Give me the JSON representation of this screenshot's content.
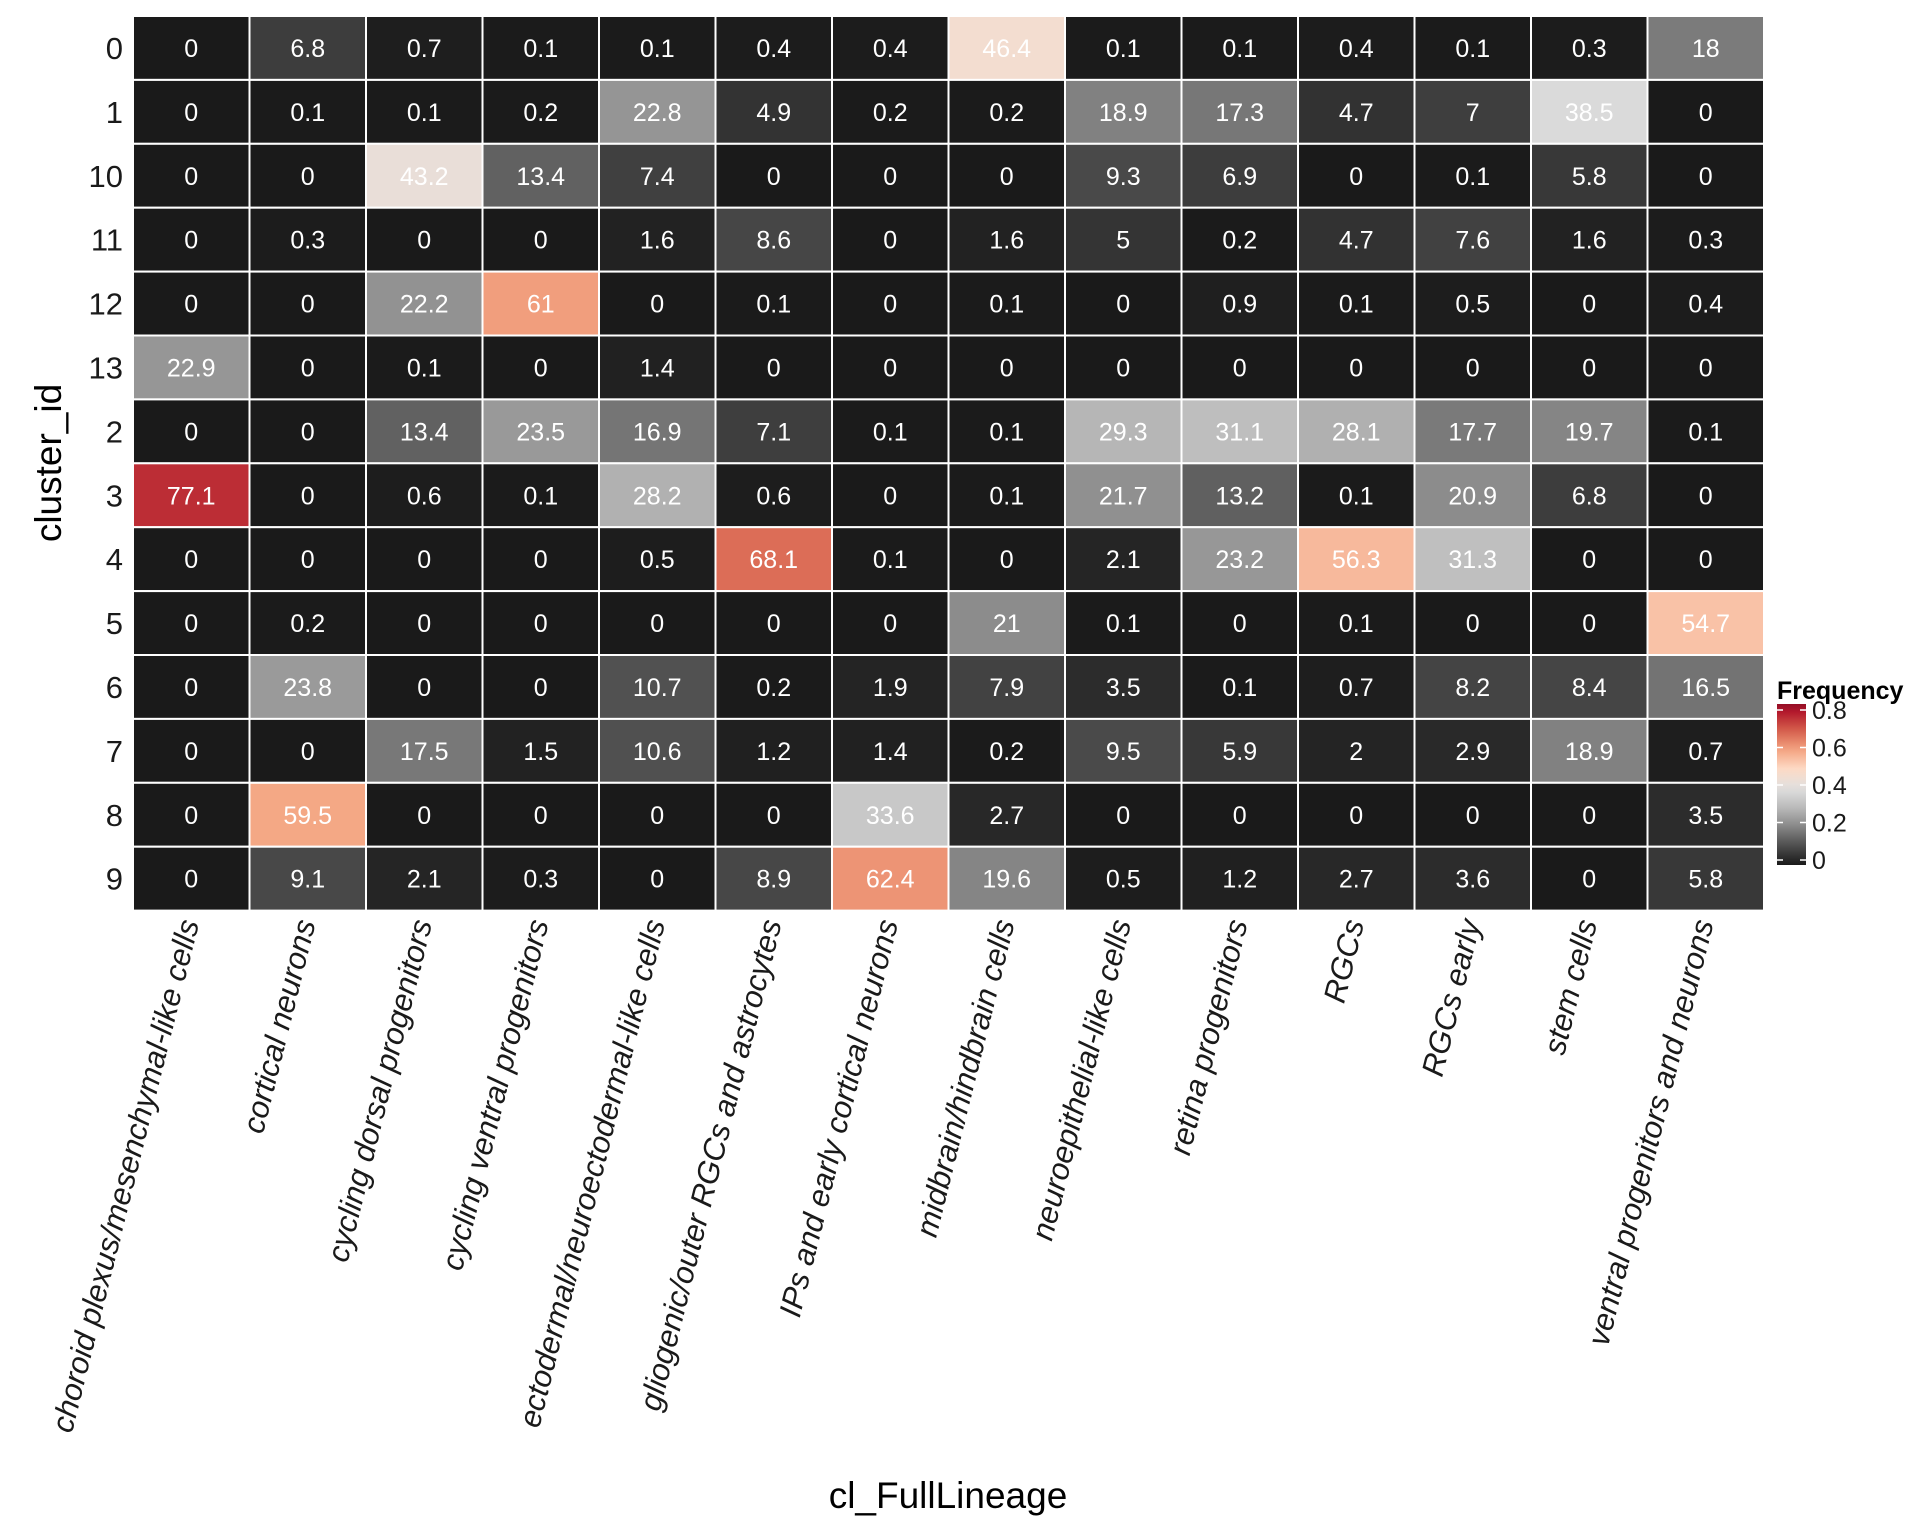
{
  "chart_data": {
    "type": "heatmap",
    "xlabel": "cl_FullLineage",
    "ylabel": "cluster_id",
    "columns": [
      "choroid plexus/mesenchymal-like cells",
      "cortical neurons",
      "cycling dorsal progenitors",
      "cycling ventral progenitors",
      "ectodermal/neuroectodermal-like cells",
      "gliogenic/outer RGCs and astrocytes",
      "IPs and early cortical neurons",
      "midbrain/hindbrain cells",
      "neuroepithelial-like cells",
      "retina progenitors",
      "RGCs",
      "RGCs early",
      "stem cells",
      "ventral progenitors and neurons"
    ],
    "rows": [
      "0",
      "1",
      "10",
      "11",
      "12",
      "13",
      "2",
      "3",
      "4",
      "5",
      "6",
      "7",
      "8",
      "9"
    ],
    "values": [
      [
        0,
        6.8,
        0.7,
        0.1,
        0.1,
        0.4,
        0.4,
        46.4,
        0.1,
        0.1,
        0.4,
        0.1,
        0.3,
        18
      ],
      [
        0,
        0.1,
        0.1,
        0.2,
        22.8,
        4.9,
        0.2,
        0.2,
        18.9,
        17.3,
        4.7,
        7,
        38.5,
        0
      ],
      [
        0,
        0,
        43.2,
        13.4,
        7.4,
        0,
        0,
        0,
        9.3,
        6.9,
        0,
        0.1,
        5.8,
        0
      ],
      [
        0,
        0.3,
        0,
        0,
        1.6,
        8.6,
        0,
        1.6,
        5,
        0.2,
        4.7,
        7.6,
        1.6,
        0.3
      ],
      [
        0,
        0,
        22.2,
        61,
        0,
        0.1,
        0,
        0.1,
        0,
        0.9,
        0.1,
        0.5,
        0,
        0.4
      ],
      [
        22.9,
        0,
        0.1,
        0,
        1.4,
        0,
        0,
        0,
        0,
        0,
        0,
        0,
        0,
        0
      ],
      [
        0,
        0,
        13.4,
        23.5,
        16.9,
        7.1,
        0.1,
        0.1,
        29.3,
        31.1,
        28.1,
        17.7,
        19.7,
        0.1
      ],
      [
        77.1,
        0,
        0.6,
        0.1,
        28.2,
        0.6,
        0,
        0.1,
        21.7,
        13.2,
        0.1,
        20.9,
        6.8,
        0
      ],
      [
        0,
        0,
        0,
        0,
        0.5,
        68.1,
        0.1,
        0,
        2.1,
        23.2,
        56.3,
        31.3,
        0,
        0
      ],
      [
        0,
        0.2,
        0,
        0,
        0,
        0,
        0,
        21,
        0.1,
        0,
        0.1,
        0,
        0,
        54.7
      ],
      [
        0,
        23.8,
        0,
        0,
        10.7,
        0.2,
        1.9,
        7.9,
        3.5,
        0.1,
        0.7,
        8.2,
        8.4,
        16.5
      ],
      [
        0,
        0,
        17.5,
        1.5,
        10.6,
        1.2,
        1.4,
        0.2,
        9.5,
        5.9,
        2,
        2.9,
        18.9,
        0.7
      ],
      [
        0,
        59.5,
        0,
        0,
        0,
        0,
        33.6,
        2.7,
        0,
        0,
        0,
        0,
        0,
        3.5
      ],
      [
        0,
        9.1,
        2.1,
        0.3,
        0,
        8.9,
        62.4,
        19.6,
        0.5,
        1.2,
        2.7,
        3.6,
        0,
        5.8
      ]
    ],
    "legend": {
      "title": "Frequency",
      "ticks": [
        0,
        0.2,
        0.4,
        0.6,
        0.8
      ],
      "tick_labels": [
        "0",
        "0.2",
        "0.4",
        "0.6",
        "0.8"
      ],
      "range": [
        0,
        0.8
      ]
    },
    "colorscale": {
      "stops": [
        {
          "v": 0.0,
          "color": "#1a1a1a"
        },
        {
          "v": 0.1,
          "color": "#4d4d4d"
        },
        {
          "v": 0.2,
          "color": "#878787"
        },
        {
          "v": 0.3,
          "color": "#bababa"
        },
        {
          "v": 0.4,
          "color": "#e0e0e0"
        },
        {
          "v": 0.5,
          "color": "#fddbc7"
        },
        {
          "v": 0.6,
          "color": "#f4a582"
        },
        {
          "v": 0.7,
          "color": "#d6604d"
        },
        {
          "v": 0.8,
          "color": "#b2182b"
        },
        {
          "v": 0.9,
          "color": "#67001f"
        }
      ]
    }
  }
}
